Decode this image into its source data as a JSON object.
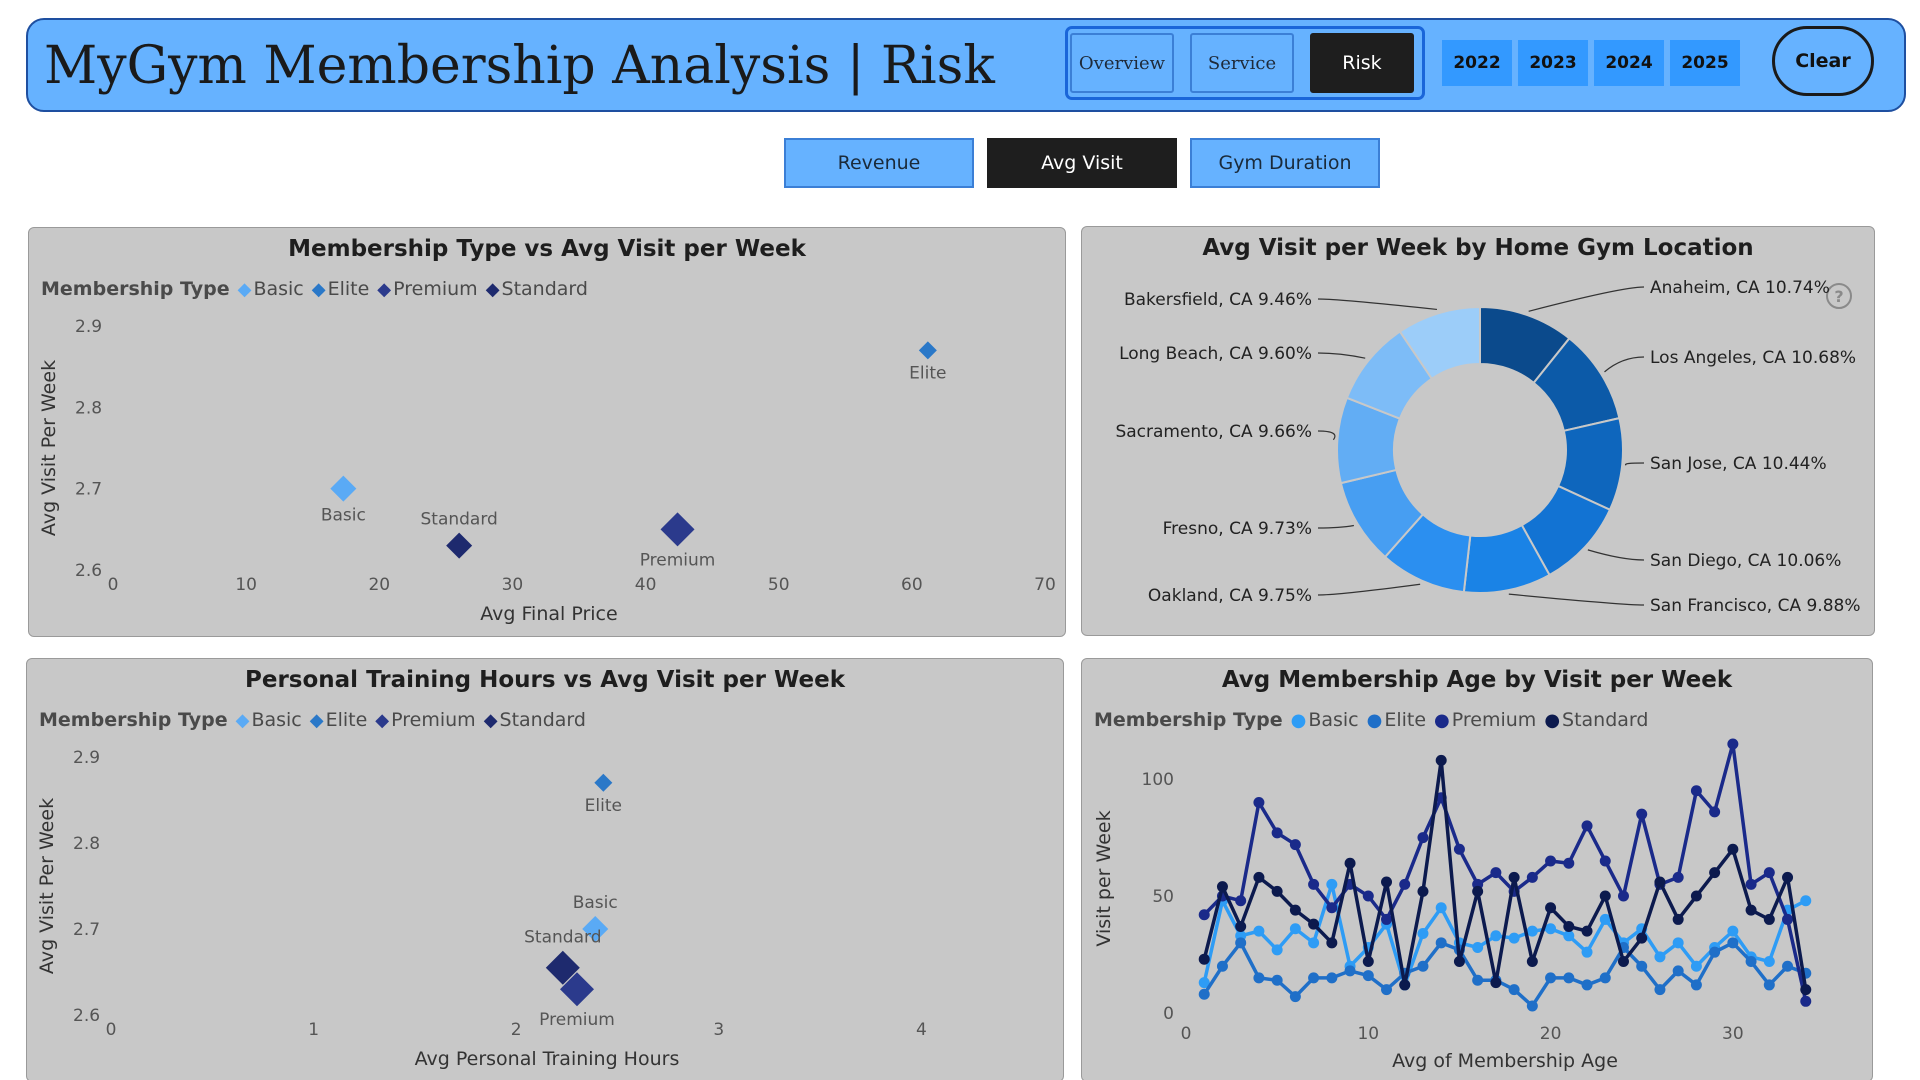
{
  "header": {
    "title": "MyGym Membership Analysis | Risk",
    "nav": [
      "Overview",
      "Service",
      "Risk"
    ],
    "active_nav": "Risk",
    "years": [
      "2022",
      "2023",
      "2024",
      "2025"
    ],
    "clear_label": "Clear"
  },
  "metrics": {
    "buttons": [
      "Revenue",
      "Avg Visit",
      "Gym Duration"
    ],
    "active": "Avg Visit"
  },
  "colors": {
    "header_bg": "#66b2ff",
    "active_bg": "#1e1e1e",
    "Basic": "#5aaaf5",
    "Elite": "#2a78c8",
    "Premium": "#2b3a8c",
    "Standard": "#1e2a6e",
    "line_Basic": "#2e9cf5",
    "line_Elite": "#1f6fc8",
    "line_Premium": "#1a2a8a",
    "line_Standard": "#0c1a4e"
  },
  "legend": {
    "title": "Membership Type",
    "items": [
      "Basic",
      "Elite",
      "Premium",
      "Standard"
    ]
  },
  "chart_data": [
    {
      "type": "scatter",
      "title": "Membership Type vs Avg Visit per Week",
      "xlabel": "Avg Final Price",
      "ylabel": "Avg Visit Per Week",
      "xlim": [
        0,
        70
      ],
      "ylim": [
        2.6,
        2.9
      ],
      "x_ticks": [
        "0",
        "10",
        "20",
        "30",
        "40",
        "50",
        "60",
        "70"
      ],
      "y_ticks": [
        "2.6",
        "2.7",
        "2.8",
        "2.9"
      ],
      "points": [
        {
          "label": "Basic",
          "x": 17.3,
          "y": 2.7,
          "size": "medium",
          "label_pos": "below"
        },
        {
          "label": "Elite",
          "x": 61.2,
          "y": 2.87,
          "size": "small",
          "label_pos": "below"
        },
        {
          "label": "Premium",
          "x": 42.4,
          "y": 2.65,
          "size": "large",
          "label_pos": "below"
        },
        {
          "label": "Standard",
          "x": 26.0,
          "y": 2.63,
          "size": "medium",
          "label_pos": "above"
        }
      ]
    },
    {
      "type": "pie",
      "donut": true,
      "title": "Avg Visit per Week by Home Gym Location",
      "slices": [
        {
          "label": "Anaheim, CA 10.74%",
          "value": 10.74,
          "color": "#0b4a8c"
        },
        {
          "label": "Los Angeles, CA 10.68%",
          "value": 10.68,
          "color": "#0c5aa8"
        },
        {
          "label": "San Jose, CA 10.44%",
          "value": 10.44,
          "color": "#0e66bd"
        },
        {
          "label": "San Diego, CA 10.06%",
          "value": 10.06,
          "color": "#1273d3"
        },
        {
          "label": "San Francisco, CA 9.88%",
          "value": 9.88,
          "color": "#1a83e6"
        },
        {
          "label": "Oakland, CA 9.75%",
          "value": 9.75,
          "color": "#2b8ff0"
        },
        {
          "label": "Fresno, CA 9.73%",
          "value": 9.73,
          "color": "#479ef2"
        },
        {
          "label": "Sacramento, CA 9.66%",
          "value": 9.66,
          "color": "#62adf4"
        },
        {
          "label": "Long Beach, CA 9.60%",
          "value": 9.6,
          "color": "#7dbcf7"
        },
        {
          "label": "Bakersfield, CA 9.46%",
          "value": 9.46,
          "color": "#9ccdf9"
        }
      ]
    },
    {
      "type": "scatter",
      "title": "Personal Training Hours vs Avg Visit per Week",
      "xlabel": "Avg Personal Training Hours",
      "ylabel": "Avg Visit Per Week",
      "xlim": [
        0,
        4.6
      ],
      "ylim": [
        2.6,
        2.9
      ],
      "x_ticks": [
        "0",
        "1",
        "2",
        "3",
        "4"
      ],
      "y_ticks": [
        "2.6",
        "2.7",
        "2.8",
        "2.9"
      ],
      "points": [
        {
          "label": "Basic",
          "x": 2.39,
          "y": 2.7,
          "size": "medium",
          "label_pos": "above"
        },
        {
          "label": "Elite",
          "x": 2.43,
          "y": 2.87,
          "size": "small",
          "label_pos": "below"
        },
        {
          "label": "Premium",
          "x": 2.3,
          "y": 2.63,
          "size": "large",
          "label_pos": "below"
        },
        {
          "label": "Standard",
          "x": 2.23,
          "y": 2.655,
          "size": "large",
          "label_pos": "above"
        }
      ]
    },
    {
      "type": "line",
      "title": "Avg Membership Age by Visit per Week",
      "xlabel": "Avg of Membership Age",
      "ylabel": "Visit per Week",
      "xlim": [
        0,
        35
      ],
      "ylim": [
        0,
        115
      ],
      "x_ticks": [
        "0",
        "10",
        "20",
        "30"
      ],
      "y_ticks": [
        "0",
        "50",
        "100"
      ],
      "x": [
        1,
        2,
        3,
        4,
        5,
        6,
        7,
        8,
        9,
        10,
        11,
        12,
        13,
        14,
        15,
        16,
        17,
        18,
        19,
        20,
        21,
        22,
        23,
        24,
        25,
        26,
        27,
        28,
        29,
        30,
        31,
        32,
        33,
        34
      ],
      "series": [
        {
          "name": "Basic",
          "values": [
            13,
            48,
            33,
            35,
            27,
            36,
            30,
            55,
            20,
            28,
            38,
            12,
            34,
            45,
            30,
            28,
            33,
            32,
            35,
            36,
            33,
            26,
            40,
            30,
            36,
            24,
            30,
            20,
            28,
            35,
            24,
            22,
            44,
            48
          ]
        },
        {
          "name": "Elite",
          "values": [
            8,
            20,
            30,
            15,
            14,
            7,
            15,
            15,
            18,
            16,
            10,
            17,
            20,
            30,
            27,
            14,
            14,
            10,
            3,
            15,
            15,
            12,
            15,
            28,
            20,
            10,
            18,
            12,
            26,
            30,
            22,
            12,
            20,
            17
          ]
        },
        {
          "name": "Premium",
          "values": [
            42,
            50,
            48,
            90,
            77,
            72,
            55,
            45,
            55,
            50,
            40,
            55,
            75,
            92,
            70,
            55,
            60,
            52,
            58,
            65,
            64,
            80,
            65,
            50,
            85,
            55,
            58,
            95,
            86,
            115,
            55,
            60,
            40,
            5
          ]
        },
        {
          "name": "Standard",
          "values": [
            23,
            54,
            37,
            58,
            52,
            44,
            38,
            30,
            64,
            22,
            56,
            12,
            52,
            108,
            22,
            52,
            13,
            58,
            22,
            45,
            37,
            35,
            50,
            22,
            32,
            56,
            40,
            50,
            60,
            70,
            44,
            40,
            58,
            10
          ]
        }
      ]
    }
  ]
}
